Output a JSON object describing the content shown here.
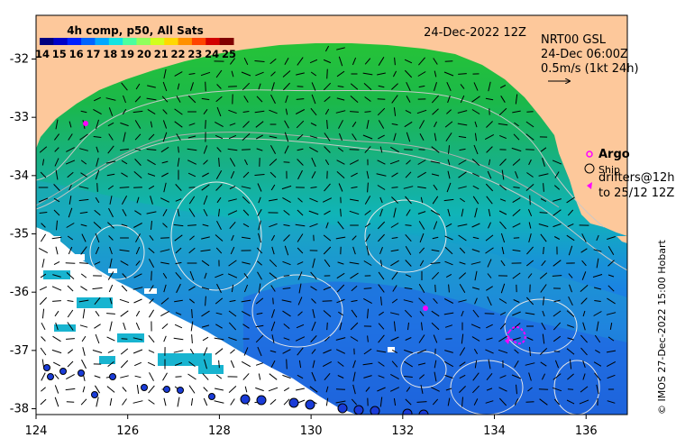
{
  "map": {
    "date_label": "24-Dec-2022 12Z",
    "colorbar": {
      "title": "4h comp, p50, All Sats",
      "ticks": [
        "14",
        "15",
        "16",
        "17",
        "18",
        "19",
        "20",
        "21",
        "22",
        "23",
        "24",
        "25"
      ],
      "colors": [
        "#00007f",
        "#0000c8",
        "#0020ff",
        "#0064ff",
        "#00a8ff",
        "#12e4e2",
        "#4cff9e",
        "#90ff5c",
        "#d2ff1e",
        "#ffd800",
        "#ff9000",
        "#ff4400",
        "#d20000",
        "#800000"
      ]
    },
    "current_legend": {
      "line1": "NRT00 GSL",
      "line2": "24-Dec 06:00Z",
      "line3": "0.5m/s (1kt 24h)"
    },
    "float_legend": {
      "argo": "Argo",
      "ship": "Ship",
      "drifters_line1": "drifters@12h",
      "drifters_line2": "to 25/12 12Z"
    },
    "credit": "© IMOS 27-Dec-2022 15:00 Hobart",
    "x_ticks": [
      "124",
      "126",
      "128",
      "130",
      "132",
      "134",
      "136"
    ],
    "y_ticks": [
      "-32",
      "-33",
      "-34",
      "-35",
      "-36",
      "-37",
      "-38"
    ],
    "x_range": [
      124,
      136.9
    ],
    "y_range": [
      -38.1,
      -31.25
    ],
    "colors": {
      "land": "#fdc89b",
      "cloud": "#ffffff",
      "argo_marker": "#ff00ff",
      "drifter": "#ff00ff"
    }
  }
}
